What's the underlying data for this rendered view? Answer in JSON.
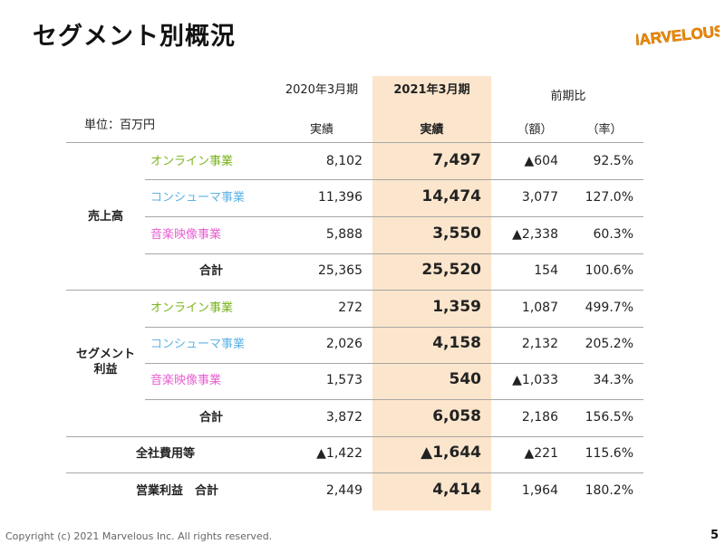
{
  "title": "セグメント別概況",
  "logo": {
    "text": "MARVELOUS!",
    "color": "#f08c00"
  },
  "headers": {
    "unit": "単位：百万円",
    "prev_period": "2020年3月期",
    "curr_period": "2021年3月期",
    "prev_sub": "実績",
    "curr_sub": "実績",
    "yoy": "前期比",
    "yoy_amount": "（額）",
    "yoy_rate": "（率）"
  },
  "groups": {
    "sales": "売上高",
    "profit_line1": "セグメント",
    "profit_line2": "利益"
  },
  "rows": [
    {
      "label": "オンライン事業",
      "prev": "8,102",
      "curr": "7,497",
      "diff": "▲604",
      "rate": "92.5%"
    },
    {
      "label": "コンシューマ事業",
      "prev": "11,396",
      "curr": "14,474",
      "diff": "3,077",
      "rate": "127.0%"
    },
    {
      "label": "音楽映像事業",
      "prev": "5,888",
      "curr": "3,550",
      "diff": "▲2,338",
      "rate": "60.3%"
    },
    {
      "label": "合計",
      "prev": "25,365",
      "curr": "25,520",
      "diff": "154",
      "rate": "100.6%"
    },
    {
      "label": "オンライン事業",
      "prev": "272",
      "curr": "1,359",
      "diff": "1,087",
      "rate": "499.7%"
    },
    {
      "label": "コンシューマ事業",
      "prev": "2,026",
      "curr": "4,158",
      "diff": "2,132",
      "rate": "205.2%"
    },
    {
      "label": "音楽映像事業",
      "prev": "1,573",
      "curr": "540",
      "diff": "▲1,033",
      "rate": "34.3%"
    },
    {
      "label": "合計",
      "prev": "3,872",
      "curr": "6,058",
      "diff": "2,186",
      "rate": "156.5%"
    },
    {
      "label": "全社費用等",
      "prev": "▲1,422",
      "curr": "▲1,644",
      "diff": "▲221",
      "rate": "115.6%"
    },
    {
      "label": "営業利益　合計",
      "prev": "2,449",
      "curr": "4,414",
      "diff": "1,964",
      "rate": "180.2%"
    }
  ],
  "footer": {
    "copyright": "Copyright (c) 2021 Marvelous Inc. All rights reserved.",
    "page": "5"
  }
}
